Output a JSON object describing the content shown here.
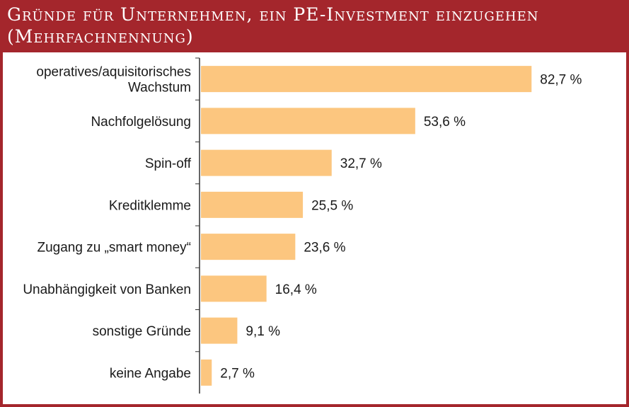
{
  "header": {
    "title_line1": "Gründe für Unternehmen, ein PE-Investment einzugehen",
    "title_line2": "(Mehrfachnennung)"
  },
  "colors": {
    "frame": "#a4262c",
    "bar": "#fcc67f",
    "axis": "#333333"
  },
  "chart_data": {
    "type": "bar",
    "orientation": "horizontal",
    "title": "Gründe für Unternehmen, ein PE-Investment einzugehen (Mehrfachnennung)",
    "categories": [
      [
        "operatives/aquisitorisches",
        "Wachstum"
      ],
      [
        "Nachfolgelösung"
      ],
      [
        "Spin-off"
      ],
      [
        "Kreditklemme"
      ],
      [
        "Zugang zu „smart money“"
      ],
      [
        "Unabhängigkeit von Banken"
      ],
      [
        "sonstige Gründe"
      ],
      [
        "keine Angabe"
      ]
    ],
    "values": [
      82.7,
      53.6,
      32.7,
      25.5,
      23.6,
      16.4,
      9.1,
      2.7
    ],
    "value_labels": [
      "82,7 %",
      "53,6 %",
      "32,7 %",
      "25,5 %",
      "23,6 %",
      "16,4 %",
      "9,1 %",
      "2,7 %"
    ],
    "xlim": [
      0,
      100
    ],
    "grid": false,
    "legend": "none"
  }
}
